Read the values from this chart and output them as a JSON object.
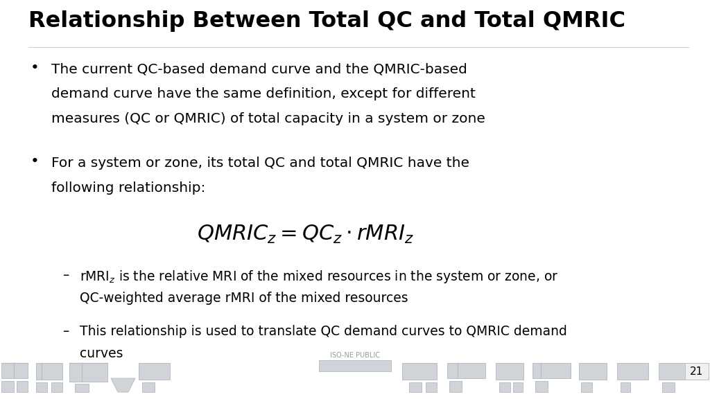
{
  "title": "Relationship Between Total QC and Total QMRIC",
  "background_color": "#ffffff",
  "title_fontsize": 23,
  "bullet1_lines": [
    "The current QC-based demand curve and the QMRIC-based",
    "demand curve have the same definition, except for different",
    "measures (QC or QMRIC) of total capacity in a system or zone"
  ],
  "bullet2_lines": [
    "For a system or zone, its total QC and total QMRIC have the",
    "following relationship:"
  ],
  "formula": "$QMRIC_z = QC_z \\cdot rMRI_z$",
  "sub1_line1": "rMRI$_z$ is the relative MRI of the mixed resources in the system or zone, or",
  "sub1_line2": "QC-weighted average rMRI of the mixed resources",
  "sub2_line1": "This relationship is used to translate QC demand curves to QMRIC demand",
  "sub2_line2": "curves",
  "footer_text": "ISO-NE PUBLIC",
  "page_number": "21",
  "text_color": "#000000",
  "footer_color": "#999999",
  "body_fontsize": 14.5,
  "formula_fontsize": 22,
  "sub_fontsize": 13.5,
  "circuit_color": "#d0d4d8",
  "circuit_line_color": "#b8bfc7"
}
